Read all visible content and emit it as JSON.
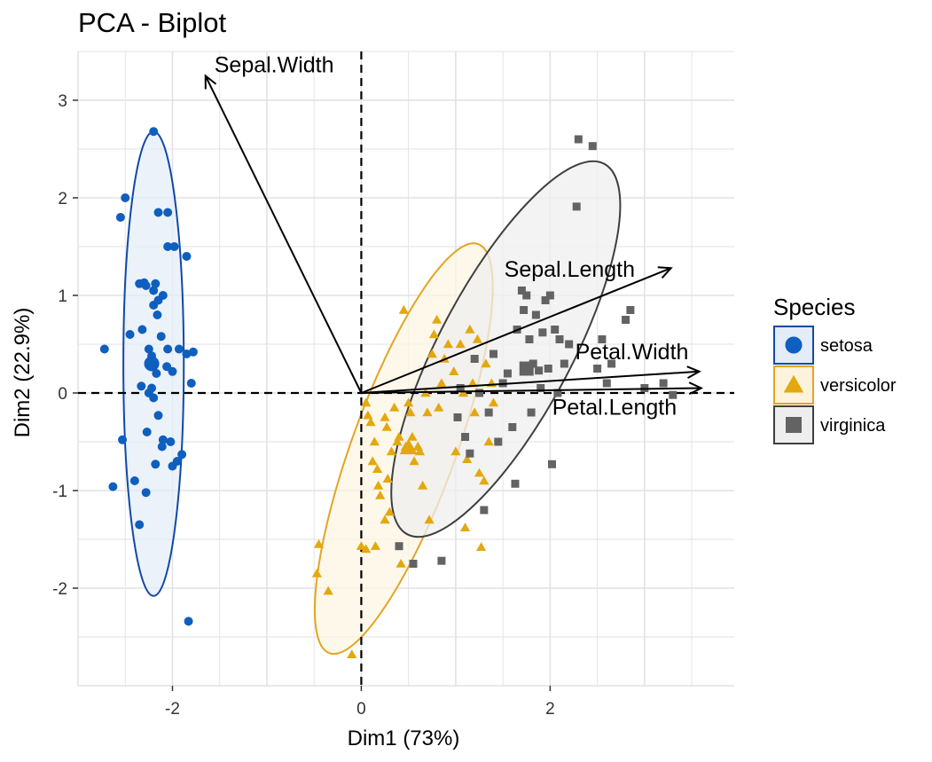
{
  "chart_data": {
    "type": "scatter",
    "title": "PCA - Biplot",
    "xlabel": "Dim1 (73%)",
    "ylabel": "Dim2 (22.9%)",
    "xlim": [
      -3.0,
      3.95
    ],
    "ylim": [
      -3.0,
      3.5
    ],
    "x_ticks": [
      -2,
      0,
      2
    ],
    "y_ticks": [
      -2,
      -1,
      0,
      1,
      2,
      3
    ],
    "x_tick_labels": [
      "-2",
      "0",
      "2"
    ],
    "y_tick_labels": [
      "-2",
      "-1",
      "0",
      "1",
      "2",
      "3"
    ],
    "grid": true,
    "legend_position": "right",
    "legend": {
      "title": "Species",
      "items": [
        {
          "label": "setosa",
          "color": "#1049A8",
          "fill": "#0F5FBF",
          "marker": "circle",
          "box_fill": "#E3ECF7"
        },
        {
          "label": "versicolor",
          "color": "#E3A522",
          "fill": "#E3A80E",
          "marker": "triangle",
          "box_fill": "#FDF3DC"
        },
        {
          "label": "virginica",
          "color": "#3F3F3F",
          "fill": "#636363",
          "marker": "square",
          "box_fill": "#EEEEEE"
        }
      ]
    },
    "ellipses": [
      {
        "name": "setosa",
        "cx": -2.2,
        "cy": 0.3,
        "rx": 0.32,
        "ry": 2.38,
        "angle_deg": 0,
        "stroke": "#1049A8",
        "fill": "#E6EEF8"
      },
      {
        "name": "versicolor",
        "cx": 0.45,
        "cy": -0.57,
        "rx": 0.55,
        "ry": 2.23,
        "angle_deg": 20,
        "stroke": "#E3A522",
        "fill": "#FDF6E4"
      },
      {
        "name": "virginica",
        "cx": 1.53,
        "cy": 0.45,
        "rx": 0.7,
        "ry": 2.15,
        "angle_deg": 28,
        "stroke": "#3F3F3F",
        "fill": "#EFEFEF"
      }
    ],
    "variables": [
      {
        "name": "Sepal.Width",
        "x": -1.65,
        "y": 3.25
      },
      {
        "name": "Sepal.Length",
        "x": 3.28,
        "y": 1.28
      },
      {
        "name": "Petal.Width",
        "x": 3.58,
        "y": 0.22
      },
      {
        "name": "Petal.Length",
        "x": 3.6,
        "y": 0.05
      }
    ],
    "series": [
      {
        "name": "setosa",
        "points": [
          [
            -2.72,
            0.45
          ],
          [
            -2.63,
            -0.96
          ],
          [
            -2.55,
            1.8
          ],
          [
            -2.53,
            -0.48
          ],
          [
            -2.5,
            2.0
          ],
          [
            -2.45,
            0.6
          ],
          [
            -2.4,
            -0.9
          ],
          [
            -2.35,
            1.12
          ],
          [
            -2.33,
            0.07
          ],
          [
            -2.32,
            0.65
          ],
          [
            -2.3,
            1.13
          ],
          [
            -2.28,
            1.1
          ],
          [
            -2.28,
            -1.02
          ],
          [
            -2.27,
            -0.4
          ],
          [
            -2.25,
            0.0
          ],
          [
            -2.25,
            0.45
          ],
          [
            -2.22,
            0.38
          ],
          [
            -2.22,
            0.05
          ],
          [
            -2.2,
            1.05
          ],
          [
            -2.2,
            0.9
          ],
          [
            -2.2,
            -0.05
          ],
          [
            -2.18,
            -0.73
          ],
          [
            -2.2,
            2.68
          ],
          [
            -2.18,
            1.12
          ],
          [
            -2.17,
            0.2
          ],
          [
            -2.16,
            0.8
          ],
          [
            -2.15,
            0.95
          ],
          [
            -2.15,
            -0.23
          ],
          [
            -2.12,
            0.58
          ],
          [
            -2.11,
            -0.55
          ],
          [
            -2.1,
            1.0
          ],
          [
            -2.1,
            -0.48
          ],
          [
            -2.05,
            1.85
          ],
          [
            -2.05,
            0.45
          ],
          [
            -2.02,
            -0.5
          ],
          [
            -2.0,
            -0.75
          ],
          [
            -2.0,
            0.22
          ],
          [
            -1.98,
            1.5
          ],
          [
            -1.95,
            -0.7
          ],
          [
            -1.93,
            0.45
          ],
          [
            -1.9,
            -0.63
          ],
          [
            -1.85,
            0.4
          ],
          [
            -1.85,
            1.4
          ],
          [
            -1.8,
            0.1
          ],
          [
            -1.78,
            0.42
          ],
          [
            -2.15,
            1.85
          ],
          [
            -2.06,
            0.27
          ],
          [
            -2.05,
            1.5
          ],
          [
            -2.35,
            -1.35
          ],
          [
            -1.83,
            -2.34
          ]
        ]
      },
      {
        "name": "versicolor",
        "points": [
          [
            -0.45,
            -1.55
          ],
          [
            -0.47,
            -1.85
          ],
          [
            -0.35,
            -2.03
          ],
          [
            -0.1,
            -2.68
          ],
          [
            0.0,
            -1.57
          ],
          [
            0.05,
            -1.6
          ],
          [
            0.05,
            -0.1
          ],
          [
            0.07,
            -0.23
          ],
          [
            0.1,
            -0.3
          ],
          [
            0.12,
            -0.7
          ],
          [
            0.14,
            -0.5
          ],
          [
            0.15,
            -1.57
          ],
          [
            0.17,
            -0.78
          ],
          [
            0.18,
            -0.95
          ],
          [
            0.2,
            -1.05
          ],
          [
            0.25,
            -1.3
          ],
          [
            0.25,
            -0.25
          ],
          [
            0.27,
            -0.35
          ],
          [
            0.28,
            -0.88
          ],
          [
            0.3,
            -1.22
          ],
          [
            0.32,
            -0.6
          ],
          [
            0.35,
            -0.15
          ],
          [
            0.38,
            -0.5
          ],
          [
            0.4,
            -0.45
          ],
          [
            0.42,
            -1.75
          ],
          [
            0.45,
            0.85
          ],
          [
            0.47,
            -0.55
          ],
          [
            0.5,
            -0.1
          ],
          [
            0.52,
            -0.2
          ],
          [
            0.54,
            -0.45
          ],
          [
            0.56,
            -0.7
          ],
          [
            0.6,
            -0.55
          ],
          [
            0.62,
            -0.6
          ],
          [
            0.65,
            -0.95
          ],
          [
            0.68,
            0.0
          ],
          [
            0.7,
            -0.2
          ],
          [
            0.72,
            -1.3
          ],
          [
            0.75,
            0.4
          ],
          [
            0.77,
            0.6
          ],
          [
            0.8,
            0.75
          ],
          [
            0.82,
            -0.15
          ],
          [
            0.85,
            0.1
          ],
          [
            0.88,
            0.35
          ],
          [
            0.92,
            0.5
          ],
          [
            0.98,
            0.22
          ],
          [
            1.0,
            -0.6
          ],
          [
            1.05,
            0.5
          ],
          [
            1.08,
            0.0
          ],
          [
            1.1,
            -1.38
          ],
          [
            1.12,
            -0.68
          ],
          [
            1.15,
            0.65
          ],
          [
            1.18,
            0.1
          ],
          [
            1.2,
            -0.2
          ],
          [
            1.23,
            0.55
          ],
          [
            1.25,
            -0.82
          ],
          [
            1.27,
            -1.58
          ],
          [
            1.3,
            -0.9
          ],
          [
            1.32,
            0.3
          ],
          [
            1.35,
            -0.5
          ],
          [
            1.38,
            0.1
          ],
          [
            1.4,
            -0.1
          ],
          [
            0.6,
            -0.55
          ]
        ]
      },
      {
        "name": "virginica",
        "points": [
          [
            0.4,
            -1.57
          ],
          [
            0.55,
            -1.75
          ],
          [
            0.85,
            -1.72
          ],
          [
            1.02,
            -0.25
          ],
          [
            1.05,
            0.05
          ],
          [
            1.1,
            -0.45
          ],
          [
            1.15,
            -0.62
          ],
          [
            1.2,
            0.35
          ],
          [
            1.25,
            0.0
          ],
          [
            1.3,
            -1.2
          ],
          [
            1.35,
            -0.2
          ],
          [
            1.4,
            0.4
          ],
          [
            1.45,
            -0.5
          ],
          [
            1.5,
            0.1
          ],
          [
            1.55,
            0.2
          ],
          [
            1.6,
            -0.35
          ],
          [
            1.63,
            -0.93
          ],
          [
            1.65,
            0.65
          ],
          [
            1.7,
            1.05
          ],
          [
            1.72,
            0.85
          ],
          [
            1.75,
            0.25
          ],
          [
            1.78,
            0.55
          ],
          [
            1.8,
            -0.2
          ],
          [
            1.82,
            0.3
          ],
          [
            1.85,
            0.8
          ],
          [
            1.88,
            0.23
          ],
          [
            1.9,
            0.05
          ],
          [
            1.92,
            0.62
          ],
          [
            1.95,
            0.95
          ],
          [
            1.98,
            0.25
          ],
          [
            2.0,
            1.0
          ],
          [
            2.02,
            -0.73
          ],
          [
            2.05,
            0.65
          ],
          [
            2.08,
            0.0
          ],
          [
            2.1,
            0.55
          ],
          [
            2.15,
            0.3
          ],
          [
            2.2,
            0.5
          ],
          [
            2.28,
            1.91
          ],
          [
            2.3,
            2.6
          ],
          [
            2.45,
            2.53
          ],
          [
            2.5,
            0.25
          ],
          [
            2.55,
            0.55
          ],
          [
            2.6,
            0.1
          ],
          [
            2.65,
            0.3
          ],
          [
            2.8,
            0.75
          ],
          [
            2.85,
            0.85
          ],
          [
            3.0,
            0.05
          ],
          [
            3.2,
            0.1
          ],
          [
            3.3,
            -0.02
          ],
          [
            1.75,
            1.0
          ]
        ]
      }
    ],
    "centroids": [
      {
        "name": "setosa",
        "x": -2.22,
        "y": 0.3
      },
      {
        "name": "versicolor",
        "x": 0.5,
        "y": -0.56
      },
      {
        "name": "virginica",
        "x": 1.75,
        "y": 0.25
      }
    ]
  }
}
